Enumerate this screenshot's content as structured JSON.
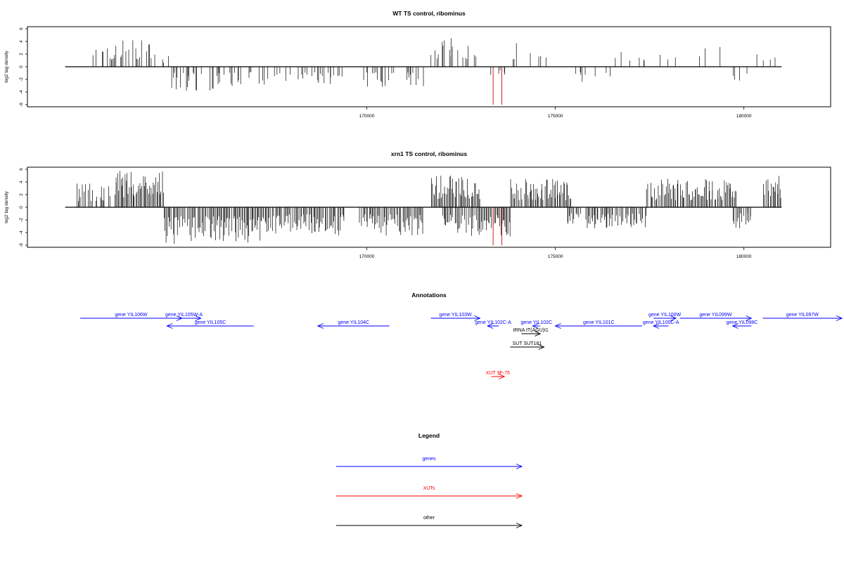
{
  "colors": {
    "gene": "#0000ff",
    "xut": "#ff0000",
    "other": "#000000",
    "peak_highlight": "#cc2222"
  },
  "chart_data": [
    {
      "type": "bar",
      "title": "WT TS control, ribominus",
      "ylabel": "log2 tag density",
      "xlim": [
        161000,
        182300
      ],
      "ylim": [
        -6,
        6
      ],
      "x_ticks": [
        170000,
        175000,
        180000
      ],
      "y_ticks": [
        6,
        4,
        2,
        0,
        -2,
        -4,
        -6
      ],
      "data_range": [
        162000,
        181000
      ],
      "highlight_bars": [
        {
          "x": 173350,
          "value": -6.0
        },
        {
          "x": 173580,
          "value": -6.0
        }
      ],
      "segments": [
        {
          "from": 162500,
          "to": 163100,
          "strand": "+",
          "max": 3.0,
          "density": 0.18
        },
        {
          "from": 163100,
          "to": 164300,
          "strand": "+",
          "max": 4.2,
          "density": 0.45
        },
        {
          "from": 164300,
          "to": 164800,
          "strand": "+",
          "max": 2.5,
          "density": 0.25
        },
        {
          "from": 164800,
          "to": 166600,
          "strand": "-",
          "max": 3.8,
          "density": 0.5
        },
        {
          "from": 166600,
          "to": 169400,
          "strand": "-",
          "max": 3.0,
          "density": 0.35
        },
        {
          "from": 169900,
          "to": 171500,
          "strand": "-",
          "max": 3.5,
          "density": 0.4
        },
        {
          "from": 171700,
          "to": 172900,
          "strand": "+",
          "max": 4.6,
          "density": 0.55
        },
        {
          "from": 172900,
          "to": 173800,
          "strand": "-",
          "max": 2.2,
          "density": 0.12
        },
        {
          "from": 173800,
          "to": 174400,
          "strand": "+",
          "max": 3.8,
          "density": 0.12
        },
        {
          "from": 174400,
          "to": 175400,
          "strand": "+",
          "max": 2.0,
          "density": 0.06
        },
        {
          "from": 175300,
          "to": 176500,
          "strand": "-",
          "max": 3.0,
          "density": 0.15
        },
        {
          "from": 176200,
          "to": 178000,
          "strand": "+",
          "max": 2.5,
          "density": 0.08
        },
        {
          "from": 178000,
          "to": 179400,
          "strand": "+",
          "max": 3.3,
          "density": 0.06
        },
        {
          "from": 179700,
          "to": 180300,
          "strand": "-",
          "max": 3.0,
          "density": 0.25
        },
        {
          "from": 180200,
          "to": 181000,
          "strand": "+",
          "max": 2.0,
          "density": 0.2
        }
      ]
    },
    {
      "type": "bar",
      "title": "xrn1 TS control, ribominus",
      "ylabel": "log2 tag density",
      "xlim": [
        161000,
        182300
      ],
      "ylim": [
        -6,
        6
      ],
      "x_ticks": [
        170000,
        175000,
        180000
      ],
      "y_ticks": [
        6,
        4,
        2,
        0,
        -2,
        -4,
        -6
      ],
      "data_range": [
        162000,
        181000
      ],
      "highlight_bars": [
        {
          "x": 173350,
          "value": -6.0
        },
        {
          "x": 173580,
          "value": -6.0
        }
      ],
      "segments": [
        {
          "from": 162300,
          "to": 163300,
          "strand": "+",
          "max": 3.8,
          "density": 0.7
        },
        {
          "from": 163300,
          "to": 164600,
          "strand": "+",
          "max": 5.8,
          "density": 0.95
        },
        {
          "from": 164600,
          "to": 167200,
          "strand": "-",
          "max": 5.8,
          "density": 0.95
        },
        {
          "from": 167200,
          "to": 169400,
          "strand": "-",
          "max": 4.5,
          "density": 0.9
        },
        {
          "from": 169800,
          "to": 171500,
          "strand": "-",
          "max": 4.5,
          "density": 0.85
        },
        {
          "from": 171700,
          "to": 173000,
          "strand": "+",
          "max": 5.2,
          "density": 0.9
        },
        {
          "from": 172000,
          "to": 173800,
          "strand": "-",
          "max": 4.8,
          "density": 0.85
        },
        {
          "from": 173800,
          "to": 175400,
          "strand": "+",
          "max": 4.5,
          "density": 0.85
        },
        {
          "from": 175300,
          "to": 177400,
          "strand": "-",
          "max": 3.5,
          "density": 0.8
        },
        {
          "from": 177400,
          "to": 179800,
          "strand": "+",
          "max": 4.5,
          "density": 0.9
        },
        {
          "from": 179700,
          "to": 180200,
          "strand": "-",
          "max": 3.5,
          "density": 0.85
        },
        {
          "from": 180500,
          "to": 181000,
          "strand": "+",
          "max": 5.6,
          "density": 0.7
        }
      ]
    }
  ],
  "annotations": {
    "title": "Annotations",
    "items": [
      {
        "label": "gene YIL106W",
        "kind": "gene",
        "strand": "+",
        "from": 162400,
        "to": 165100,
        "row": 1
      },
      {
        "label": "gene YIL105W-A",
        "kind": "gene",
        "strand": "+",
        "from": 164700,
        "to": 165600,
        "row": 1
      },
      {
        "label": "gene YIL105C",
        "kind": "gene",
        "strand": "-",
        "from": 164700,
        "to": 167000,
        "row": 2
      },
      {
        "label": "gene YIL104C",
        "kind": "gene",
        "strand": "-",
        "from": 168700,
        "to": 170600,
        "row": 2
      },
      {
        "label": "gene YIL103W",
        "kind": "gene",
        "strand": "+",
        "from": 171700,
        "to": 173000,
        "row": 1
      },
      {
        "label": "gene YIL102C-A",
        "kind": "gene",
        "strand": "-",
        "from": 173200,
        "to": 173500,
        "row": 2
      },
      {
        "label": "gene YIL102C",
        "kind": "gene",
        "strand": "-",
        "from": 174400,
        "to": 174600,
        "row": 2
      },
      {
        "label": "gene YIL101C",
        "kind": "gene",
        "strand": "-",
        "from": 175000,
        "to": 177300,
        "row": 2
      },
      {
        "label": "gene YIL100W",
        "kind": "gene",
        "strand": "+",
        "from": 177600,
        "to": 178200,
        "row": 1
      },
      {
        "label": "gene YIL100C-A",
        "kind": "gene",
        "strand": "-",
        "from": 177600,
        "to": 178000,
        "row": 2
      },
      {
        "label": "gene YIL099W",
        "kind": "gene",
        "strand": "+",
        "from": 178300,
        "to": 180200,
        "row": 1
      },
      {
        "label": "gene YIL098C",
        "kind": "gene",
        "strand": "-",
        "from": 179700,
        "to": 180200,
        "row": 2
      },
      {
        "label": "gene YIL097W",
        "kind": "gene",
        "strand": "+",
        "from": 180500,
        "to": 182600,
        "row": 1
      },
      {
        "label": "tRNA tT(AGU)I1",
        "kind": "other",
        "strand": "+",
        "from": 174100,
        "to": 174600,
        "row": 3
      },
      {
        "label": "SUT SUT181",
        "kind": "other",
        "strand": "+",
        "from": 173800,
        "to": 174700,
        "row": 4
      },
      {
        "label": "XUT 9F-75",
        "kind": "xut",
        "strand": "+",
        "from": 173300,
        "to": 173650,
        "row": 5
      }
    ]
  },
  "legend": {
    "title": "Legend",
    "items": [
      {
        "label": "genes",
        "kind": "gene"
      },
      {
        "label": "XUTs",
        "kind": "xut"
      },
      {
        "label": "other",
        "kind": "other"
      }
    ]
  }
}
